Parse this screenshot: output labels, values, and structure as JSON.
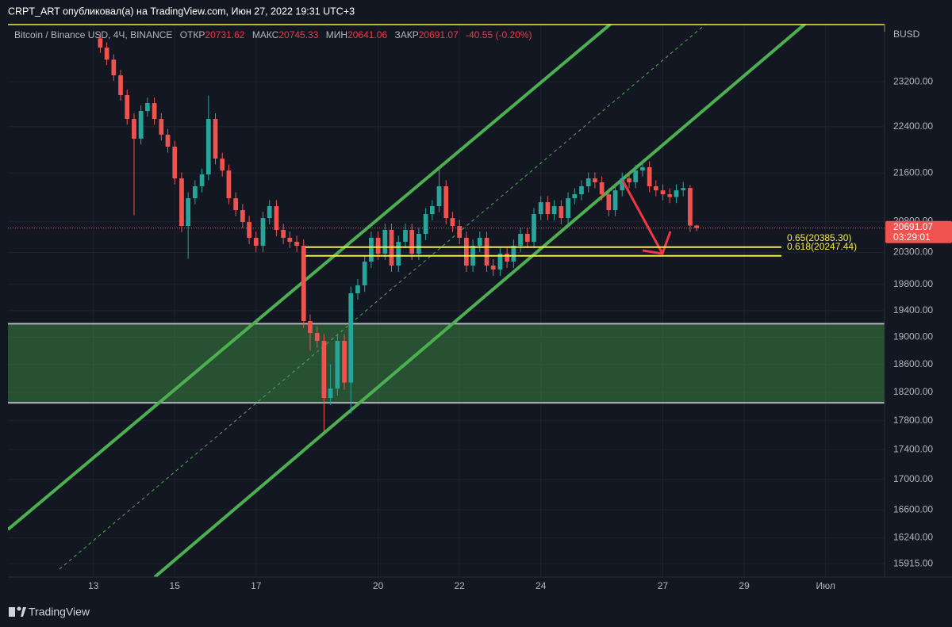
{
  "header": "CRPT_ART опубликовал(а) на TradingView.com, Июн 27, 2022 19:31 UTC+3",
  "footer_brand": "TradingView",
  "chart_data": {
    "type": "candlestick",
    "legend": {
      "symbol": "Bitcoin / Binance USD, 4Ч, BINANCE",
      "open_label": "ОТКР",
      "high_label": "МАКС",
      "low_label": "МИН",
      "close_label": "ЗАКР",
      "change": "-40.55 (-0.20%)"
    },
    "currency": "BUSD",
    "countdown": "03:29:01",
    "up_color": "#26a69a",
    "down_color": "#ef5350",
    "log_scale": true,
    "grid": true,
    "xlim": [
      10.9,
      32.45
    ],
    "xticks": [
      13,
      15,
      17,
      20,
      22,
      24,
      27,
      29,
      {
        "value": 31,
        "label": "Июл"
      }
    ],
    "ylim": [
      15750,
      24275
    ],
    "yticks": [
      {
        "value": 23200,
        "label": "23200.00"
      },
      {
        "value": 22400,
        "label": "22400.00"
      },
      {
        "value": 21600,
        "label": "21600.00"
      },
      {
        "value": 20800,
        "label": "20800.00"
      },
      {
        "value": 20300,
        "label": "20300.00"
      },
      {
        "value": 19800,
        "label": "19800.00"
      },
      {
        "value": 19400,
        "label": "19400.00"
      },
      {
        "value": 19000,
        "label": "19000.00"
      },
      {
        "value": 18600,
        "label": "18600.00"
      },
      {
        "value": 18200,
        "label": "18200.00"
      },
      {
        "value": 17800,
        "label": "17800.00"
      },
      {
        "value": 17400,
        "label": "17400.00"
      },
      {
        "value": 17000,
        "label": "17000.00"
      },
      {
        "value": 16600,
        "label": "16600.00"
      },
      {
        "value": 16240,
        "label": "16240.00"
      },
      {
        "value": 15915,
        "label": "15915.00"
      }
    ],
    "zone": [
      18050,
      19200
    ],
    "fib_levels": [
      {
        "value": 20385.3,
        "label": "0.65(20385.30)"
      },
      {
        "value": 20247.44,
        "label": "0.618(20247.44)"
      }
    ],
    "x": [
      13.17,
      13.33,
      13.5,
      13.67,
      13.83,
      14,
      14.17,
      14.33,
      14.5,
      14.67,
      14.83,
      15,
      15.17,
      15.33,
      15.5,
      15.67,
      15.83,
      16,
      16.17,
      16.33,
      16.5,
      16.67,
      16.83,
      17,
      17.17,
      17.33,
      17.5,
      17.67,
      17.83,
      18,
      18.17,
      18.33,
      18.5,
      18.67,
      18.83,
      19,
      19.17,
      19.33,
      19.5,
      19.67,
      19.83,
      20,
      20.17,
      20.33,
      20.5,
      20.67,
      20.83,
      21,
      21.17,
      21.33,
      21.5,
      21.67,
      21.83,
      22,
      22.17,
      22.33,
      22.5,
      22.67,
      22.83,
      23,
      23.17,
      23.33,
      23.5,
      23.67,
      23.83,
      24,
      24.17,
      24.33,
      24.5,
      24.67,
      24.83,
      25,
      25.17,
      25.33,
      25.5,
      25.67,
      25.83,
      26,
      26.17,
      26.33,
      26.5,
      26.67,
      26.83,
      27,
      27.17,
      27.33,
      27.5,
      27.67,
      27.83
    ],
    "open": [
      24000,
      23827,
      23604,
      23316,
      22958,
      22534,
      22190,
      22674,
      22815,
      22534,
      22259,
      22051,
      21511,
      20726,
      21179,
      21379,
      21577,
      22534,
      21846,
      21643,
      21179,
      20984,
      20790,
      20534,
      20407,
      20854,
      21049,
      20662,
      20534,
      20470,
      20407,
      19240,
      19062,
      18944,
      18118,
      18250,
      18944,
      18337,
      19663,
      19785,
      20156,
      20534,
      20281,
      20662,
      20094,
      20470,
      20662,
      20281,
      20598,
      20919,
      21049,
      21379,
      20854,
      20726,
      20534,
      20094,
      20407,
      20534,
      20094,
      20032,
      20281,
      20156,
      20407,
      20598,
      20470,
      20919,
      21114,
      20919,
      21049,
      20854,
      21179,
      21245,
      21379,
      21511,
      21445,
      21245,
      20984,
      21311,
      21511,
      21445,
      21643,
      21700,
      21379,
      21311,
      21245,
      21200,
      21311,
      21350,
      20731.62
    ],
    "high": [
      24100,
      23927,
      23704,
      23416,
      23058,
      22634,
      22774,
      22915,
      22915,
      22634,
      22359,
      22151,
      21611,
      21279,
      21479,
      21677,
      22950,
      22634,
      21946,
      21743,
      21279,
      21084,
      20890,
      20634,
      20954,
      21149,
      21149,
      20762,
      20634,
      20570,
      20507,
      19340,
      19162,
      19044,
      18600,
      19044,
      19044,
      19763,
      19885,
      20256,
      20634,
      20634,
      20762,
      20762,
      20570,
      20762,
      20762,
      20698,
      21019,
      21149,
      21700,
      21479,
      20954,
      20826,
      20634,
      20507,
      20634,
      20634,
      20194,
      20381,
      20381,
      20507,
      20698,
      20698,
      21019,
      21214,
      21214,
      21149,
      21149,
      21279,
      21345,
      21479,
      21611,
      21611,
      21545,
      21345,
      21411,
      21611,
      21611,
      21743,
      21800,
      21800,
      21479,
      21411,
      21345,
      21411,
      21450,
      21400,
      20745.33
    ],
    "low": [
      23727,
      23504,
      23216,
      22858,
      22434,
      20900,
      22090,
      22574,
      22434,
      22159,
      21951,
      21411,
      20626,
      20200,
      21079,
      21279,
      21477,
      21746,
      21543,
      21079,
      20884,
      20690,
      20434,
      20307,
      20307,
      20754,
      20562,
      20434,
      20370,
      20307,
      19140,
      18800,
      18844,
      17650,
      18018,
      18150,
      18237,
      17900,
      19563,
      19685,
      20056,
      20181,
      20181,
      19994,
      19994,
      20370,
      20181,
      20181,
      20498,
      20819,
      20949,
      20754,
      20626,
      20434,
      19994,
      19994,
      20307,
      19994,
      19932,
      19932,
      20056,
      20056,
      20307,
      20370,
      20370,
      20819,
      20819,
      20819,
      20754,
      20754,
      21079,
      21145,
      21279,
      21345,
      21145,
      20884,
      20884,
      21211,
      21345,
      21345,
      21543,
      21279,
      21211,
      21145,
      21100,
      21100,
      21211,
      20631,
      20641.06
    ],
    "close": [
      23827,
      23604,
      23316,
      22958,
      22534,
      22190,
      22674,
      22815,
      22534,
      22259,
      22051,
      21511,
      20726,
      21179,
      21379,
      21577,
      22534,
      21846,
      21643,
      21179,
      20984,
      20790,
      20534,
      20407,
      20854,
      21049,
      20662,
      20534,
      20470,
      20407,
      19240,
      19062,
      18944,
      18118,
      18250,
      18944,
      18337,
      19663,
      19785,
      20156,
      20534,
      20281,
      20662,
      20094,
      20470,
      20662,
      20281,
      20598,
      20919,
      21049,
      21379,
      20854,
      20726,
      20534,
      20094,
      20407,
      20534,
      20094,
      20032,
      20281,
      20156,
      20407,
      20598,
      20470,
      20919,
      21114,
      20919,
      21049,
      20854,
      21179,
      21245,
      21379,
      21511,
      21445,
      21245,
      20984,
      21311,
      21511,
      21445,
      21643,
      21700,
      21379,
      21311,
      21245,
      21200,
      21311,
      21350,
      20731.62,
      20691.07
    ]
  }
}
